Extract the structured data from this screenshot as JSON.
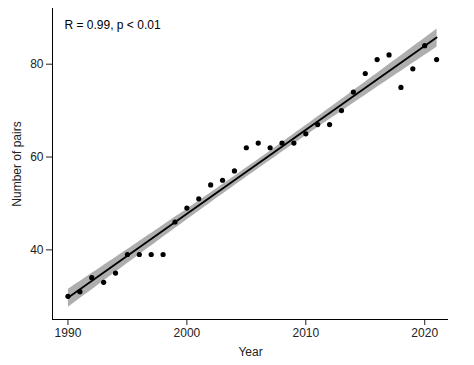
{
  "chart_data": {
    "type": "scatter",
    "annotation": "R = 0.99, p < 0.01",
    "x_label": "Year",
    "y_label": "Number of pairs",
    "x": [
      1990,
      1991,
      1992,
      1993,
      1994,
      1995,
      1996,
      1997,
      1998,
      1999,
      2000,
      2001,
      2002,
      2003,
      2004,
      2005,
      2006,
      2007,
      2008,
      2009,
      2010,
      2011,
      2012,
      2013,
      2014,
      2015,
      2016,
      2017,
      2018,
      2019,
      2020,
      2021
    ],
    "values": [
      30,
      31,
      34,
      33,
      35,
      39,
      39,
      39,
      39,
      46,
      49,
      51,
      54,
      55,
      57,
      62,
      63,
      62,
      63,
      63,
      65,
      67,
      67,
      70,
      74,
      78,
      81,
      82,
      75,
      79,
      84,
      81
    ],
    "color": "#000000",
    "xlim": [
      1988.7,
      2022
    ],
    "xticks": [
      1990,
      2000,
      2010,
      2020
    ],
    "ylim": [
      25,
      92
    ],
    "yticks": [
      40,
      60,
      80
    ],
    "grid": false
  }
}
